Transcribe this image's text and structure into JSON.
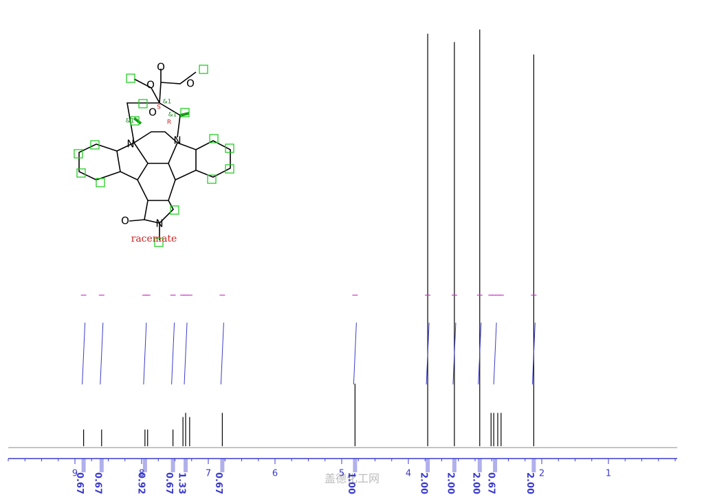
{
  "structure": {
    "atoms": [
      "O",
      "O",
      "O",
      "O",
      "N",
      "N",
      "O",
      "N"
    ],
    "stereo": [
      "&1",
      "S",
      "&1",
      "R",
      "&1"
    ],
    "note": "racemate"
  },
  "chart_data": {
    "type": "nmr",
    "xlim": [
      10,
      0
    ],
    "xticks": [
      9,
      8,
      7,
      6,
      5,
      4,
      2,
      1
    ],
    "ylim": [
      0,
      100
    ],
    "color": "#000000",
    "integral_color": "#3a3acc",
    "marker_color": "#cc33cc",
    "peaks": {
      "x": [
        8.87,
        8.6,
        7.95,
        7.91,
        7.53,
        7.38,
        7.34,
        7.28,
        6.79,
        4.8,
        3.71,
        3.31,
        2.93,
        2.76,
        2.72,
        2.66,
        2.61,
        2.12
      ],
      "values": [
        4,
        4,
        4,
        4,
        4,
        7,
        8,
        7,
        8,
        15,
        99,
        97,
        100,
        8,
        8,
        8,
        8,
        94
      ]
    },
    "integrals": {
      "x": [
        8.87,
        8.6,
        7.95,
        7.53,
        7.34,
        6.79,
        4.8,
        3.71,
        3.31,
        2.93,
        2.7,
        2.12
      ],
      "values": [
        0.67,
        0.67,
        0.92,
        0.67,
        1.33,
        0.67,
        1.0,
        2.0,
        2.0,
        2.0,
        0.67,
        2.0
      ],
      "value_labels": [
        "0.67",
        "0.67",
        "0.92",
        "0.67",
        "1.33",
        "0.67",
        "1.00",
        "2.00",
        "2.00",
        "2.00",
        "0.67",
        "2.00"
      ]
    }
  },
  "watermark": "盖德化工网"
}
